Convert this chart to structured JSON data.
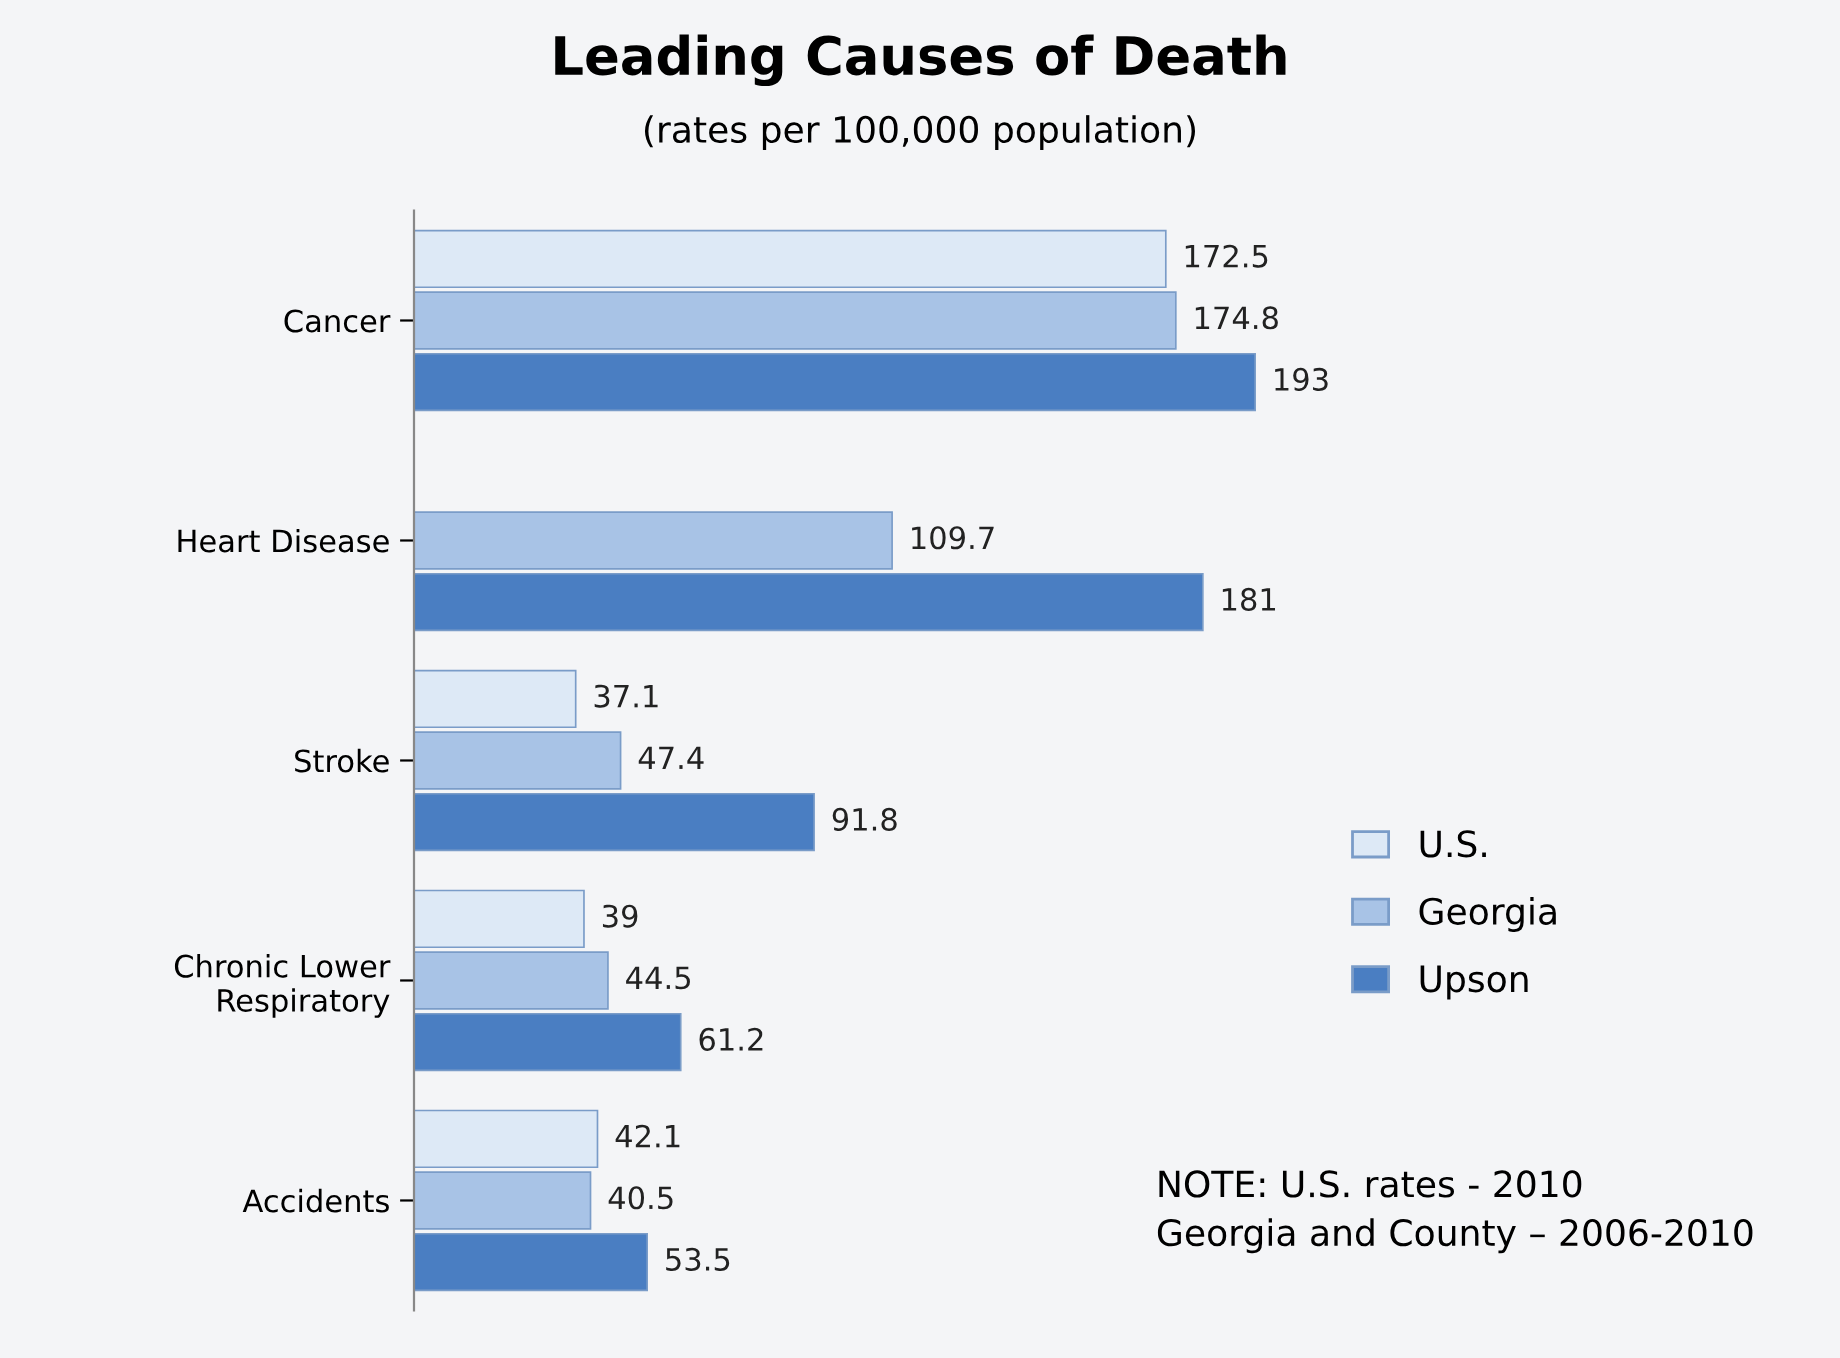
{
  "chart_data": {
    "type": "bar",
    "orientation": "horizontal",
    "title": "Leading Causes of Death",
    "subtitle": "(rates per 100,000 population)",
    "categories": [
      "Cancer",
      "Heart Disease",
      "Stroke",
      "Chronic Lower\nRespiratory",
      "Accidents"
    ],
    "series": [
      {
        "name": "U.S.",
        "color": "#dde9f6",
        "values": [
          172.5,
          null,
          37.1,
          39,
          42.1
        ]
      },
      {
        "name": "Georgia",
        "color": "#a8c3e6",
        "values": [
          174.8,
          109.7,
          47.4,
          44.5,
          40.5
        ]
      },
      {
        "name": "Upson",
        "color": "#4a7ec2",
        "values": [
          193,
          181,
          91.8,
          61.2,
          53.5
        ]
      }
    ],
    "data_labels": true,
    "legend": "right",
    "grid": false,
    "annotations": [
      "NOTE: U.S. rates - 2010\nGeorgia and County – 2006-2010"
    ]
  }
}
